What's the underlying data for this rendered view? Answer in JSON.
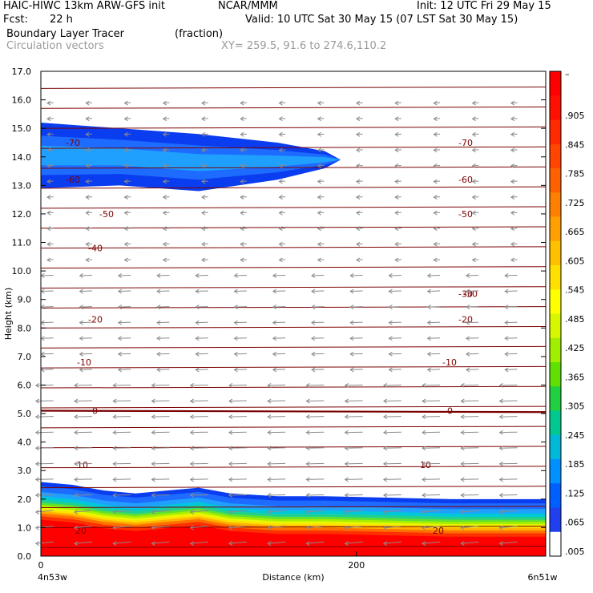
{
  "header": {
    "model": "HAIC-HIWC 13km ARW-GFS init",
    "org": "NCAR/MMM",
    "init": "Init: 12 UTC Fri 29 May 15",
    "fcst_label": "Fcst:",
    "fcst_value": "22 h",
    "valid": "Valid: 10 UTC Sat 30 May 15 (07 LST Sat 30 May 15)",
    "field": "Boundary Layer Tracer",
    "units": "(fraction)",
    "overlay": "Circulation vectors",
    "xy": "XY= 259.5, 91.6 to 274.6,110.2"
  },
  "chart_data": {
    "type": "heatmap",
    "title": "Boundary Layer Tracer",
    "xlabel": "Distance (km)",
    "ylabel": "Height (km)",
    "xlim": [
      0,
      320
    ],
    "ylim": [
      0,
      17
    ],
    "x_ticks": [
      "0",
      "200"
    ],
    "x_end_labels": [
      "4n53w",
      "6n51w"
    ],
    "y_ticks": [
      "0.0",
      "1.0",
      "2.0",
      "3.0",
      "4.0",
      "5.0",
      "6.0",
      "7.0",
      "8.0",
      "9.0",
      "10.0",
      "11.0",
      "12.0",
      "13.0",
      "14.0",
      "15.0",
      "16.0",
      "17.0"
    ],
    "colorbar": {
      "labels": [
        "–",
        ".905",
        ".845",
        ".785",
        ".725",
        ".665",
        ".605",
        ".545",
        ".485",
        ".425",
        ".365",
        ".305",
        ".245",
        ".185",
        ".125",
        ".065",
        ".005"
      ],
      "colors": [
        "#ff0000",
        "#ff1000",
        "#ff2a00",
        "#ff4500",
        "#ff6000",
        "#ff8000",
        "#ffa000",
        "#ffc000",
        "#ffe000",
        "#ffff00",
        "#d6f700",
        "#a0ee00",
        "#60e000",
        "#20d040",
        "#00c890",
        "#00b8d8",
        "#0090ff",
        "#0060ff",
        "#2040f0",
        "#ffffff"
      ]
    },
    "plume_surface": {
      "x": [
        0,
        20,
        40,
        60,
        80,
        100,
        120,
        150,
        180,
        220,
        260,
        300,
        320
      ],
      "top": [
        2.6,
        2.5,
        2.3,
        2.2,
        2.3,
        2.4,
        2.2,
        2.1,
        2.1,
        2.05,
        2.0,
        2.0,
        2.0
      ]
    },
    "plume_upper": {
      "x": [
        0,
        50,
        100,
        150,
        180,
        190
      ],
      "top": [
        15.2,
        15.0,
        14.8,
        14.5,
        14.2,
        13.9
      ],
      "bottom": [
        12.9,
        13.0,
        12.8,
        13.2,
        13.6,
        13.9
      ]
    },
    "isotherms": {
      "labels": [
        "-70",
        "-60",
        "-50",
        "-40",
        "-30",
        "-20",
        "-10",
        "0",
        "10",
        "20"
      ],
      "heights_left": [
        14.5,
        13.2,
        12.0,
        10.8,
        9.2,
        8.3,
        6.8,
        5.1,
        3.2,
        0.9
      ]
    },
    "vectors": "uniform weak westward flow, stronger near surface"
  }
}
